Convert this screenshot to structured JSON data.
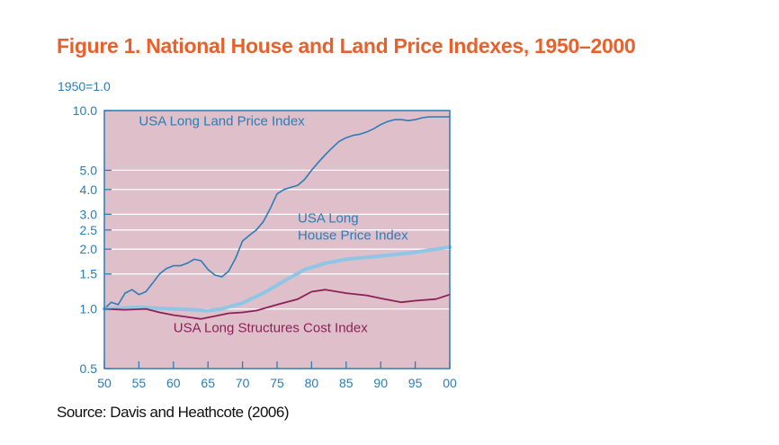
{
  "figure": {
    "title": "Figure 1. National House and Land Price Indexes, 1950–2000",
    "source": "Source: Davis and Heathcote (2006)"
  },
  "chart_data": {
    "type": "line",
    "title": "Figure 1. National House and Land Price Indexes, 1950–2000",
    "ylabel": "1950=1.0",
    "xlabel": "",
    "y_scale": "log",
    "xlim": [
      1950,
      2000
    ],
    "ylim": [
      0.5,
      10.0
    ],
    "x_ticks": [
      1950,
      1955,
      1960,
      1965,
      1970,
      1975,
      1980,
      1985,
      1990,
      1995,
      2000
    ],
    "x_tick_labels": [
      "50",
      "55",
      "60",
      "65",
      "70",
      "75",
      "80",
      "85",
      "90",
      "95",
      "00"
    ],
    "y_ticks": [
      0.5,
      1.0,
      1.5,
      2.0,
      2.5,
      3.0,
      4.0,
      5.0,
      10.0
    ],
    "y_tick_labels": [
      "0.5",
      "1.0",
      "1.5",
      "2.0",
      "2.5",
      "3.0",
      "4.0",
      "5.0",
      "10.0"
    ],
    "grid": "horizontal",
    "background_color": "#dfbfca",
    "axis_color": "#2a7db6",
    "series": [
      {
        "name": "USA Long Land Price Index",
        "color": "#2a7db6",
        "x": [
          1950,
          1951,
          1952,
          1953,
          1954,
          1955,
          1956,
          1957,
          1958,
          1959,
          1960,
          1961,
          1962,
          1963,
          1964,
          1965,
          1966,
          1967,
          1968,
          1969,
          1970,
          1971,
          1972,
          1973,
          1974,
          1975,
          1976,
          1977,
          1978,
          1979,
          1980,
          1981,
          1982,
          1983,
          1984,
          1985,
          1986,
          1987,
          1988,
          1989,
          1990,
          1991,
          1992,
          1993,
          1994,
          1995,
          1996,
          1997,
          1998,
          1999,
          2000
        ],
        "values": [
          1.0,
          1.08,
          1.05,
          1.2,
          1.25,
          1.18,
          1.22,
          1.35,
          1.5,
          1.6,
          1.65,
          1.65,
          1.7,
          1.78,
          1.75,
          1.58,
          1.48,
          1.45,
          1.55,
          1.8,
          2.2,
          2.35,
          2.5,
          2.75,
          3.2,
          3.8,
          4.0,
          4.1,
          4.2,
          4.5,
          5.0,
          5.5,
          6.0,
          6.5,
          7.0,
          7.3,
          7.5,
          7.6,
          7.8,
          8.1,
          8.5,
          8.8,
          9.0,
          9.0,
          8.9,
          9.0,
          9.2,
          9.3,
          9.3,
          9.3,
          9.3
        ]
      },
      {
        "name": "USA Long House Price Index",
        "color": "#8fc6e6",
        "x": [
          1950,
          1955,
          1960,
          1963,
          1965,
          1967,
          1970,
          1973,
          1976,
          1979,
          1982,
          1985,
          1990,
          1995,
          2000
        ],
        "values": [
          1.0,
          1.02,
          1.0,
          0.99,
          0.98,
          1.0,
          1.07,
          1.2,
          1.38,
          1.58,
          1.7,
          1.78,
          1.85,
          1.93,
          2.05
        ]
      },
      {
        "name": "USA Long Structures Cost Index",
        "color": "#8a2257",
        "x": [
          1950,
          1953,
          1956,
          1958,
          1960,
          1962,
          1964,
          1966,
          1968,
          1970,
          1972,
          1975,
          1978,
          1980,
          1982,
          1985,
          1988,
          1990,
          1993,
          1995,
          1998,
          2000
        ],
        "values": [
          1.0,
          0.99,
          1.0,
          0.96,
          0.93,
          0.91,
          0.89,
          0.92,
          0.95,
          0.96,
          0.98,
          1.05,
          1.12,
          1.22,
          1.25,
          1.2,
          1.17,
          1.13,
          1.08,
          1.1,
          1.12,
          1.18
        ]
      }
    ],
    "annotations": [
      {
        "text": "USA Long Land Price Index",
        "x": 1955,
        "y": 8.4,
        "color": "#2a7db6"
      },
      {
        "text": "USA Long",
        "x": 1978,
        "y": 2.72,
        "color": "#2a7db6"
      },
      {
        "text": "House Price Index",
        "x": 1978,
        "y": 2.24,
        "color": "#2a7db6"
      },
      {
        "text": "USA Long Structures Cost Index",
        "x": 1960,
        "y": 0.765,
        "color": "#8a2257"
      }
    ]
  }
}
